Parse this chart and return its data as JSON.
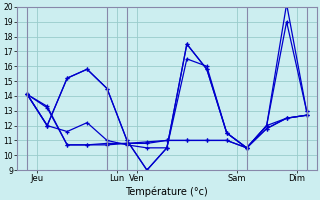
{
  "xlabel": "Température (°c)",
  "bg_color": "#cceef0",
  "grid_color": "#99cccc",
  "line_color": "#0000cc",
  "sep_color": "#8888aa",
  "ylim": [
    9,
    20
  ],
  "xlim": [
    0,
    14
  ],
  "yticks": [
    9,
    10,
    11,
    12,
    13,
    14,
    15,
    16,
    17,
    18,
    19,
    20
  ],
  "xtick_positions": [
    0.5,
    4.5,
    5.5,
    10.5,
    13.5
  ],
  "xtick_labels": [
    "Jeu",
    "Lun",
    "Ven",
    "Sam",
    "Dim"
  ],
  "day_sep_positions": [
    0,
    4,
    5,
    11,
    14
  ],
  "series": [
    [
      14.1,
      13.3,
      10.7,
      10.7,
      10.8,
      10.8,
      10.9,
      11.0,
      11.0,
      11.0,
      11.0,
      10.5,
      11.8,
      12.5,
      12.7
    ],
    [
      14.1,
      13.2,
      10.7,
      10.7,
      10.7,
      10.8,
      10.8,
      11.0,
      11.0,
      11.0,
      11.0,
      10.5,
      11.8,
      12.5,
      12.7
    ],
    [
      14.1,
      12.0,
      11.6,
      12.2,
      11.0,
      10.7,
      10.5,
      10.5,
      16.5,
      16.0,
      11.5,
      10.5,
      12.0,
      12.5,
      12.7
    ],
    [
      14.1,
      12.0,
      15.2,
      15.8,
      14.5,
      11.0,
      9.0,
      10.5,
      17.5,
      15.8,
      11.5,
      10.5,
      12.0,
      19.0,
      13.0
    ],
    [
      14.1,
      12.0,
      15.2,
      15.8,
      14.5,
      11.0,
      9.0,
      10.5,
      17.5,
      15.8,
      11.5,
      10.5,
      12.0,
      20.2,
      13.0
    ]
  ]
}
